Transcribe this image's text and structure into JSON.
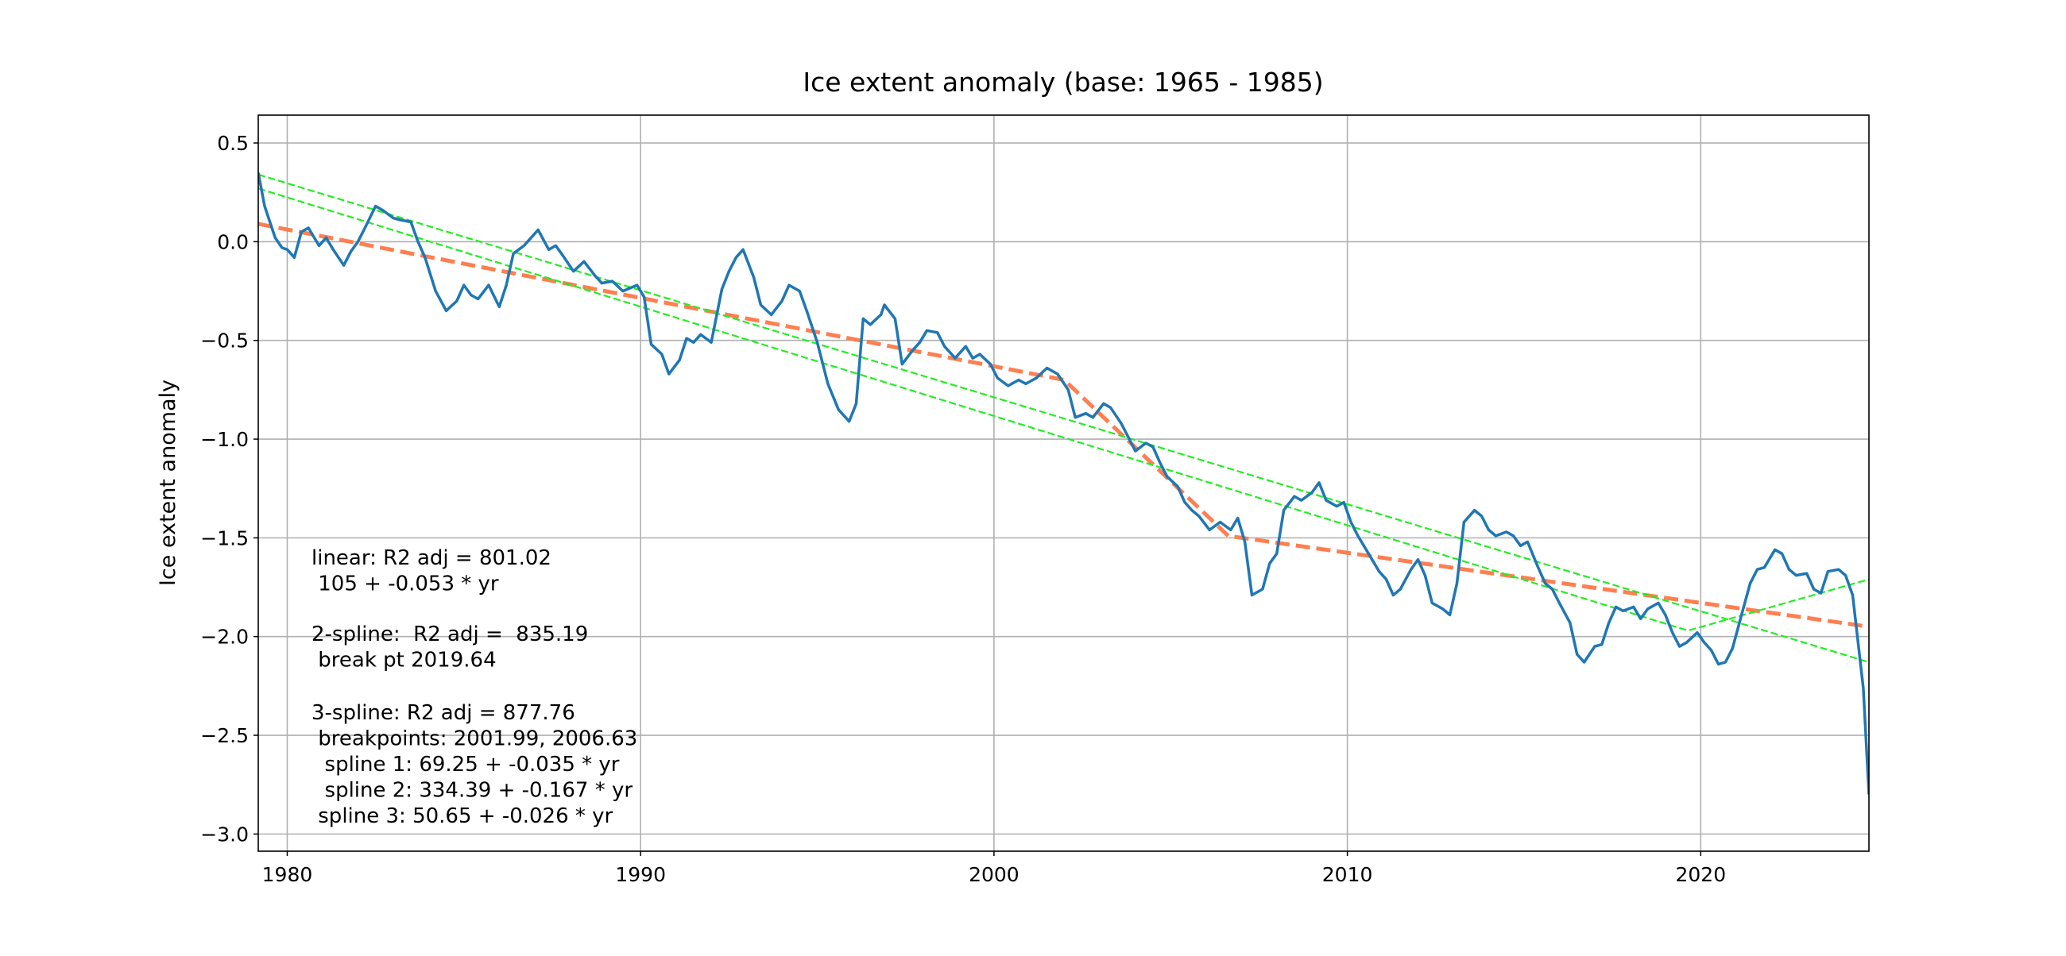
{
  "chart_data": {
    "type": "line",
    "title": "Ice extent anomaly (base: 1965 - 1985)",
    "y_label": "Ice extent anomaly",
    "xlim": [
      1979.18,
      2024.76
    ],
    "ylim": [
      -3.087,
      0.641
    ],
    "xticks": [
      1980,
      1990,
      2000,
      2010,
      2020
    ],
    "yticks": [
      0.5,
      {
        "value": 0,
        "label": "0.0"
      },
      {
        "value": -0.5,
        "label": "−0.5"
      },
      {
        "value": -1,
        "label": "−1.0"
      },
      {
        "value": -1.5,
        "label": "−1.5"
      },
      {
        "value": -2,
        "label": "−2.0"
      },
      {
        "value": -2.5,
        "label": "−2.5"
      },
      {
        "value": -3,
        "label": "−3.0"
      }
    ],
    "grid": true,
    "annotation": [
      [
        "linear: R2 adj = 801.02",
        " 105 + -0.053 * yr"
      ],
      [
        "2-spline:  R2 adj =  835.19",
        " break pt 2019.64"
      ],
      [
        "3-spline: R2 adj = 877.76",
        " breakpoints: 2001.99, 2006.63",
        "  spline 1: 69.25 + -0.035 * yr",
        "  spline 2: 334.39 + -0.167 * yr",
        " spline 3: 50.65 + -0.026 * yr"
      ]
    ],
    "series": [
      {
        "color": "#1f77b4",
        "style": "solid",
        "x": [
          1979.18,
          1979.36,
          1979.66,
          1979.85,
          1980.0,
          1980.2,
          1980.4,
          1980.6,
          1980.9,
          1981.1,
          1981.3,
          1981.6,
          1981.8,
          1982.0,
          1982.2,
          1982.5,
          1982.7,
          1983.0,
          1983.2,
          1983.5,
          1983.7,
          1983.9,
          1984.2,
          1984.5,
          1984.8,
          1985.0,
          1985.2,
          1985.4,
          1985.7,
          1986.0,
          1986.2,
          1986.4,
          1986.7,
          1986.9,
          1987.1,
          1987.4,
          1987.6,
          1987.8,
          1988.1,
          1988.4,
          1988.7,
          1988.9,
          1989.2,
          1989.5,
          1989.9,
          1990.1,
          1990.3,
          1990.6,
          1990.8,
          1991.1,
          1991.3,
          1991.5,
          1991.7,
          1992.0,
          1992.3,
          1992.5,
          1992.7,
          1992.9,
          1993.2,
          1993.4,
          1993.7,
          1994.0,
          1994.2,
          1994.5,
          1994.7,
          1995.0,
          1995.3,
          1995.6,
          1995.9,
          1996.1,
          1996.3,
          1996.5,
          1996.8,
          1996.9,
          1997.2,
          1997.4,
          1997.7,
          1997.9,
          1998.1,
          1998.4,
          1998.6,
          1998.9,
          1999.2,
          1999.4,
          1999.6,
          1999.9,
          2000.1,
          2000.4,
          2000.7,
          2000.9,
          2001.2,
          2001.5,
          2001.8,
          2002.1,
          2002.3,
          2002.6,
          2002.8,
          2003.1,
          2003.3,
          2003.6,
          2003.8,
          2004.0,
          2004.3,
          2004.5,
          2004.7,
          2004.9,
          2005.2,
          2005.4,
          2005.6,
          2005.8,
          2006.1,
          2006.4,
          2006.7,
          2006.9,
          2007.1,
          2007.3,
          2007.6,
          2007.8,
          2008.0,
          2008.2,
          2008.5,
          2008.7,
          2009.0,
          2009.2,
          2009.4,
          2009.7,
          2009.9,
          2010.1,
          2010.3,
          2010.6,
          2010.9,
          2011.1,
          2011.3,
          2011.5,
          2011.8,
          2012.0,
          2012.2,
          2012.4,
          2012.7,
          2012.9,
          2013.1,
          2013.3,
          2013.6,
          2013.8,
          2014.0,
          2014.2,
          2014.5,
          2014.7,
          2014.9,
          2015.1,
          2015.4,
          2015.6,
          2015.8,
          2016.0,
          2016.3,
          2016.5,
          2016.7,
          2017.0,
          2017.2,
          2017.4,
          2017.6,
          2017.8,
          2018.1,
          2018.3,
          2018.5,
          2018.8,
          2019.0,
          2019.2,
          2019.4,
          2019.6,
          2019.9,
          2020.1,
          2020.3,
          2020.5,
          2020.7,
          2020.9,
          2021.2,
          2021.4,
          2021.6,
          2021.8,
          2022.1,
          2022.3,
          2022.5,
          2022.7,
          2023.0,
          2023.2,
          2023.4,
          2023.6,
          2023.9,
          2024.1,
          2024.3,
          2024.6,
          2024.76
        ],
        "values": [
          0.35,
          0.18,
          0.02,
          -0.03,
          -0.04,
          -0.08,
          0.05,
          0.07,
          -0.02,
          0.02,
          -0.04,
          -0.12,
          -0.05,
          0.0,
          0.07,
          0.18,
          0.16,
          0.12,
          0.11,
          0.1,
          0.0,
          -0.08,
          -0.25,
          -0.35,
          -0.3,
          -0.22,
          -0.27,
          -0.29,
          -0.22,
          -0.33,
          -0.22,
          -0.06,
          -0.02,
          0.02,
          0.06,
          -0.04,
          -0.02,
          -0.07,
          -0.15,
          -0.1,
          -0.17,
          -0.21,
          -0.2,
          -0.25,
          -0.22,
          -0.28,
          -0.52,
          -0.57,
          -0.67,
          -0.6,
          -0.49,
          -0.51,
          -0.47,
          -0.51,
          -0.24,
          -0.15,
          -0.08,
          -0.04,
          -0.18,
          -0.32,
          -0.37,
          -0.3,
          -0.22,
          -0.25,
          -0.35,
          -0.51,
          -0.72,
          -0.85,
          -0.91,
          -0.82,
          -0.39,
          -0.42,
          -0.37,
          -0.32,
          -0.39,
          -0.62,
          -0.55,
          -0.51,
          -0.45,
          -0.46,
          -0.53,
          -0.59,
          -0.53,
          -0.59,
          -0.57,
          -0.62,
          -0.69,
          -0.73,
          -0.7,
          -0.72,
          -0.69,
          -0.64,
          -0.67,
          -0.75,
          -0.89,
          -0.87,
          -0.89,
          -0.82,
          -0.84,
          -0.92,
          -0.99,
          -1.06,
          -1.02,
          -1.04,
          -1.12,
          -1.19,
          -1.24,
          -1.32,
          -1.36,
          -1.39,
          -1.46,
          -1.42,
          -1.46,
          -1.4,
          -1.52,
          -1.79,
          -1.76,
          -1.63,
          -1.58,
          -1.36,
          -1.29,
          -1.31,
          -1.27,
          -1.22,
          -1.31,
          -1.34,
          -1.32,
          -1.42,
          -1.49,
          -1.58,
          -1.67,
          -1.71,
          -1.79,
          -1.76,
          -1.66,
          -1.61,
          -1.69,
          -1.83,
          -1.86,
          -1.89,
          -1.73,
          -1.42,
          -1.36,
          -1.39,
          -1.46,
          -1.49,
          -1.47,
          -1.49,
          -1.54,
          -1.52,
          -1.65,
          -1.73,
          -1.76,
          -1.83,
          -1.93,
          -2.09,
          -2.13,
          -2.05,
          -2.04,
          -1.93,
          -1.85,
          -1.87,
          -1.85,
          -1.91,
          -1.86,
          -1.83,
          -1.89,
          -1.98,
          -2.05,
          -2.03,
          -1.98,
          -2.03,
          -2.07,
          -2.14,
          -2.13,
          -2.06,
          -1.86,
          -1.73,
          -1.66,
          -1.65,
          -1.56,
          -1.58,
          -1.66,
          -1.69,
          -1.68,
          -1.76,
          -1.78,
          -1.67,
          -1.66,
          -1.69,
          -1.79,
          -2.26,
          -2.8
        ]
      },
      {
        "color": "#ff7f50",
        "style": "dashed-thick",
        "x": [
          1979.18,
          2001.99,
          2006.63,
          2024.76
        ],
        "values": [
          0.09,
          -0.7,
          -1.49,
          -1.95
        ]
      },
      {
        "color": "#22ee22",
        "style": "dashed",
        "x": [
          1979.18,
          2024.76
        ],
        "values": [
          0.34,
          -2.13
        ]
      },
      {
        "color": "#22ee22",
        "style": "dashed",
        "x": [
          1979.18,
          2019.64,
          2024.76
        ],
        "values": [
          0.27,
          -1.97,
          -1.71
        ]
      }
    ]
  }
}
